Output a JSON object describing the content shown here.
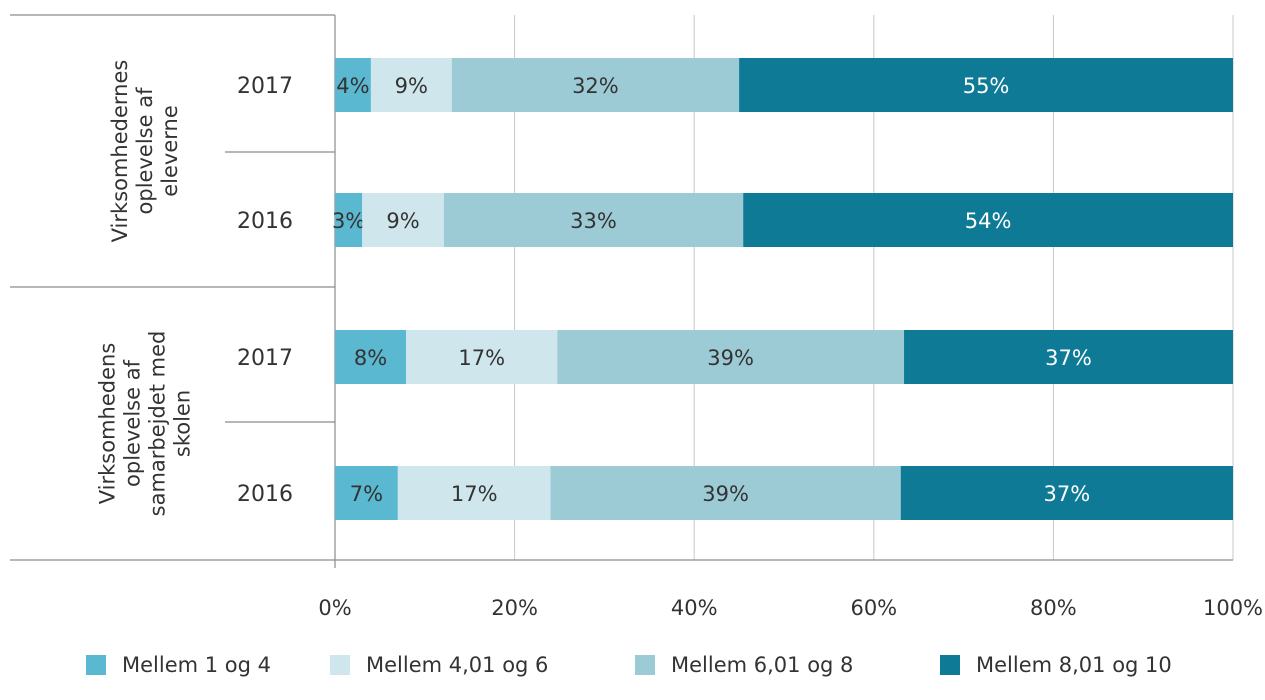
{
  "chart_data": {
    "type": "bar",
    "orientation": "horizontal",
    "stacked": "percent",
    "groups": [
      {
        "label_lines": [
          "Virksomhedernes",
          "oplevelse af",
          "eleverne"
        ],
        "rows": [
          {
            "year": "2017",
            "values": [
              4,
              9,
              32,
              55
            ],
            "labels": [
              "4%",
              "9%",
              "32%",
              "55%"
            ]
          },
          {
            "year": "2016",
            "values": [
              3,
              9,
              33,
              54
            ],
            "labels": [
              "3%",
              "9%",
              "33%",
              "54%"
            ]
          }
        ]
      },
      {
        "label_lines": [
          "Virksomhedens",
          "oplevelse af",
          "samarbejdet med",
          "skolen"
        ],
        "rows": [
          {
            "year": "2017",
            "values": [
              8,
              17,
              39,
              37
            ],
            "labels": [
              "8%",
              "17%",
              "39%",
              "37%"
            ]
          },
          {
            "year": "2016",
            "values": [
              7,
              17,
              39,
              37
            ],
            "labels": [
              "7%",
              "17%",
              "39%",
              "37%"
            ]
          }
        ]
      }
    ],
    "series": [
      {
        "name": "Mellem 1 og 4",
        "color": "#5bb8d1",
        "label_color": "#333333"
      },
      {
        "name": "Mellem 4,01 og 6",
        "color": "#cfe6ec",
        "label_color": "#333333"
      },
      {
        "name": "Mellem 6,01 og 8",
        "color": "#9ccbd6",
        "label_color": "#333333"
      },
      {
        "name": "Mellem 8,01 og 10",
        "color": "#0f7a96",
        "label_color": "#ffffff"
      }
    ],
    "x_ticks": [
      "0%",
      "20%",
      "40%",
      "60%",
      "80%",
      "100%"
    ],
    "xlim": [
      0,
      100
    ],
    "grid": true,
    "legend_position": "bottom"
  }
}
